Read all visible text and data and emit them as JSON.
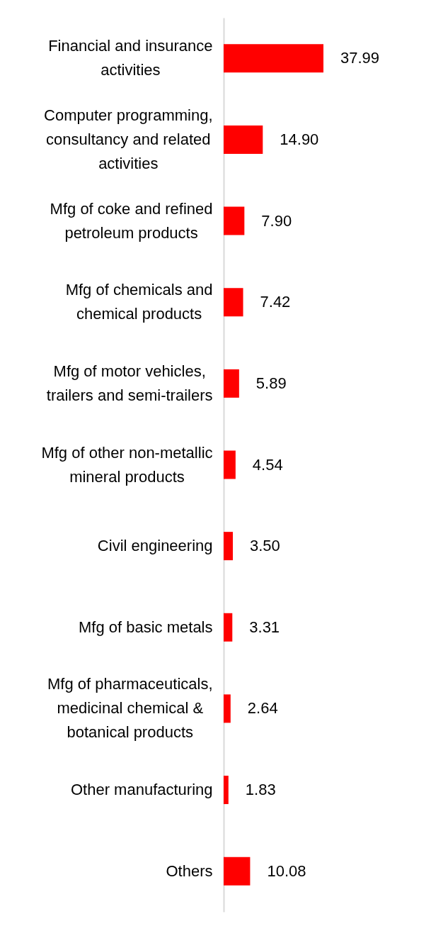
{
  "chart_data": {
    "type": "bar",
    "orientation": "horizontal",
    "tick_labels": "y",
    "color": "#ff0000",
    "categories": [
      "Financial and insurance activities",
      "Computer programming, consultancy and related activities",
      "Mfg of coke and refined petroleum products",
      "Mfg of chemicals and chemical products",
      "Mfg of motor vehicles, trailers and semi-trailers",
      "Mfg of other non-metallic mineral products",
      "Civil engineering",
      "Mfg of basic metals",
      "Mfg of pharmaceuticals, medicinal chemical & botanical products",
      "Other manufacturing",
      "Others"
    ],
    "values": [
      37.99,
      14.9,
      7.9,
      7.42,
      5.89,
      4.54,
      3.5,
      3.31,
      2.64,
      1.83,
      10.08
    ],
    "value_labels": [
      "37.99",
      "14.90",
      "7.90",
      "7.42",
      "5.89",
      "4.54",
      "3.50",
      "3.31",
      "2.64",
      "1.83",
      "10.08"
    ]
  }
}
